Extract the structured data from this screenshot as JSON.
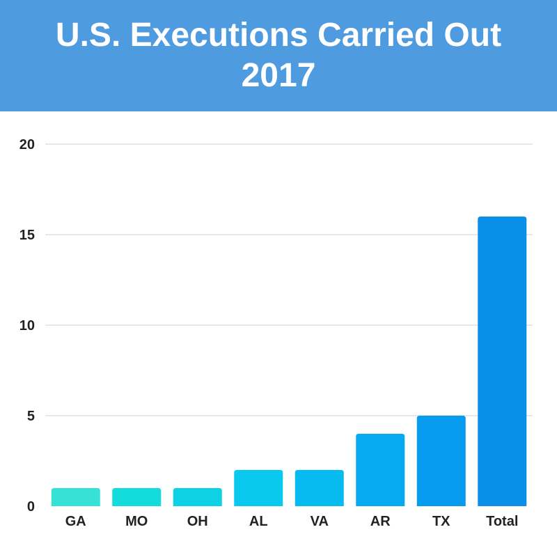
{
  "header": {
    "title_line1": "U.S. Executions Carried Out",
    "title_line2": "2017"
  },
  "colors": {
    "header_bg": "#4e9be0",
    "bars": [
      "#36e2d5",
      "#14dcdc",
      "#0fd1e6",
      "#0ac9ee",
      "#06bbf0",
      "#05aaf0",
      "#069bef",
      "#0a8fe8"
    ]
  },
  "chart_data": {
    "type": "bar",
    "title": "U.S. Executions Carried Out 2017",
    "categories": [
      "GA",
      "MO",
      "OH",
      "AL",
      "VA",
      "AR",
      "TX",
      "Total"
    ],
    "values": [
      1,
      1,
      1,
      2,
      2,
      4,
      5,
      16
    ],
    "xlabel": "",
    "ylabel": "",
    "ylim": [
      0,
      20
    ],
    "yticks": [
      0,
      5,
      10,
      15,
      20
    ],
    "grid": true,
    "legend": "none"
  }
}
